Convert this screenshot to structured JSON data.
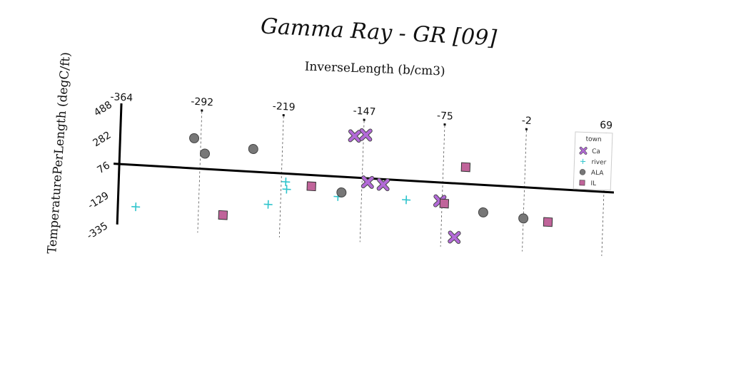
{
  "chart_data": {
    "type": "scatter",
    "title": "Gamma Ray - GR [09]",
    "xlabel": "InverseLength (b/cm3)",
    "ylabel": "TemperaturePerLength (degC/ft)",
    "xlim": [
      -364,
      69
    ],
    "ylim": [
      -335,
      488
    ],
    "x_ticks": [
      "-364",
      "-292",
      "-219",
      "-147",
      "-75",
      "-2",
      "69"
    ],
    "y_ticks": [
      "488",
      "282",
      "76",
      "-129",
      "-335"
    ],
    "grid": "vertical dashed",
    "legend": {
      "title": "town",
      "placement": "right",
      "entries": [
        "Ca",
        "river",
        "ALA",
        "IL"
      ]
    },
    "series": [
      {
        "name": "Ca",
        "marker": "x",
        "color": "#b36ad8",
        "points": [
          [
            -155,
            358
          ],
          [
            -145,
            370
          ],
          [
            -142,
            50
          ],
          [
            -128,
            40
          ],
          [
            -77,
            -50
          ],
          [
            -63,
            -290
          ]
        ]
      },
      {
        "name": "river",
        "marker": "+",
        "color": "#2ec4cc",
        "points": [
          [
            -348,
            -208
          ],
          [
            -230,
            -140
          ],
          [
            -215,
            20
          ],
          [
            -214,
            -30
          ],
          [
            -168,
            -60
          ],
          [
            -107,
            -55
          ]
        ]
      },
      {
        "name": "ALA",
        "marker": "circle",
        "color": "#777777",
        "points": [
          [
            -298,
            280
          ],
          [
            -288,
            180
          ],
          [
            -245,
            230
          ],
          [
            -165,
            -30
          ],
          [
            -38,
            -110
          ],
          [
            -2,
            -135
          ]
        ]
      },
      {
        "name": "IL",
        "marker": "square",
        "color": "#c0649a",
        "points": [
          [
            -270,
            -230
          ],
          [
            -192,
            0
          ],
          [
            -73,
            -65
          ],
          [
            -55,
            190
          ],
          [
            20,
            -150
          ]
        ]
      }
    ]
  }
}
